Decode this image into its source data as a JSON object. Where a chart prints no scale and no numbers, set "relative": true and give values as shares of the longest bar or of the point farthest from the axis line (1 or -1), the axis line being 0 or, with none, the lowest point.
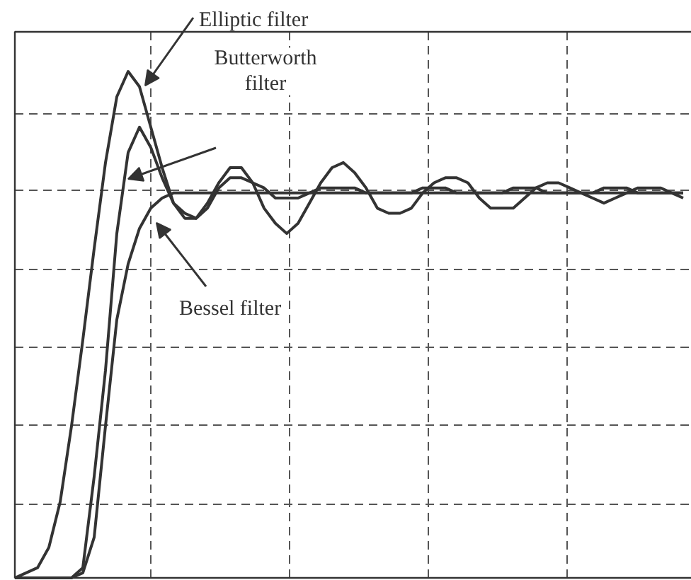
{
  "chart_data": {
    "type": "line",
    "relative": true,
    "grid": true,
    "marker": "none",
    "line_style": "solid",
    "categories": [
      null,
      null,
      null,
      null,
      null,
      null,
      null,
      null,
      null,
      null,
      null,
      null,
      null,
      null,
      null,
      null,
      null,
      null,
      null,
      null,
      null,
      null,
      null,
      null,
      null,
      null,
      null,
      null,
      null,
      null,
      null,
      null,
      null,
      null,
      null,
      null,
      null,
      null,
      null,
      null,
      null,
      null,
      null,
      null,
      null,
      null,
      null,
      null,
      null,
      null,
      null,
      null,
      null,
      null,
      null,
      null,
      null,
      null,
      null,
      null
    ],
    "series": [
      {
        "name": "Elliptic filter",
        "color": "#333333",
        "values": [
          0,
          0.01,
          0.02,
          0.06,
          0.15,
          0.3,
          0.47,
          0.65,
          0.82,
          0.95,
          1,
          0.97,
          0.89,
          0.81,
          0.74,
          0.71,
          0.71,
          0.74,
          0.78,
          0.81,
          0.81,
          0.78,
          0.73,
          0.7,
          0.68,
          0.7,
          0.74,
          0.78,
          0.81,
          0.82,
          0.8,
          0.77,
          0.73,
          0.72,
          0.72,
          0.73,
          0.76,
          0.78,
          0.79,
          0.79,
          0.78,
          0.75,
          0.73,
          0.73,
          0.73,
          0.75,
          0.77,
          0.78,
          0.78,
          0.77,
          0.76,
          0.75,
          0.74,
          0.75,
          0.76,
          0.77,
          0.77,
          0.77,
          0.76,
          0.75
        ]
      },
      {
        "name": "Butterworth filter",
        "color": "#333333",
        "values": [
          0,
          0,
          0,
          0,
          0,
          0,
          0.02,
          0.2,
          0.41,
          0.68,
          0.84,
          0.89,
          0.85,
          0.79,
          0.74,
          0.72,
          0.71,
          0.73,
          0.77,
          0.79,
          0.79,
          0.78,
          0.77,
          0.75,
          0.75,
          0.75,
          0.76,
          0.77,
          0.77,
          0.77,
          0.77,
          0.76,
          0.76,
          0.76,
          0.76,
          0.76,
          0.77,
          0.77,
          0.77,
          0.76,
          0.76,
          0.76,
          0.76,
          0.76,
          0.77,
          0.77,
          0.77,
          0.76,
          0.76,
          0.76,
          0.76,
          0.76,
          0.77,
          0.77,
          0.77,
          0.76,
          0.76,
          0.76,
          0.76,
          0.76
        ]
      },
      {
        "name": "Bessel filter",
        "color": "#333333",
        "values": [
          0,
          0,
          0,
          0,
          0,
          0,
          0.01,
          0.08,
          0.3,
          0.51,
          0.62,
          0.69,
          0.73,
          0.75,
          0.76,
          0.76,
          0.76,
          0.76,
          0.76,
          0.76,
          0.76,
          0.76,
          0.76,
          0.76,
          0.76,
          0.76,
          0.76,
          0.76,
          0.76,
          0.76,
          0.76,
          0.76,
          0.76,
          0.76,
          0.76,
          0.76,
          0.76,
          0.76,
          0.76,
          0.76,
          0.76,
          0.76,
          0.76,
          0.76,
          0.76,
          0.76,
          0.76,
          0.76,
          0.76,
          0.76,
          0.76,
          0.76,
          0.76,
          0.76,
          0.76,
          0.76,
          0.76,
          0.76,
          0.76,
          0.76
        ]
      }
    ]
  }
}
